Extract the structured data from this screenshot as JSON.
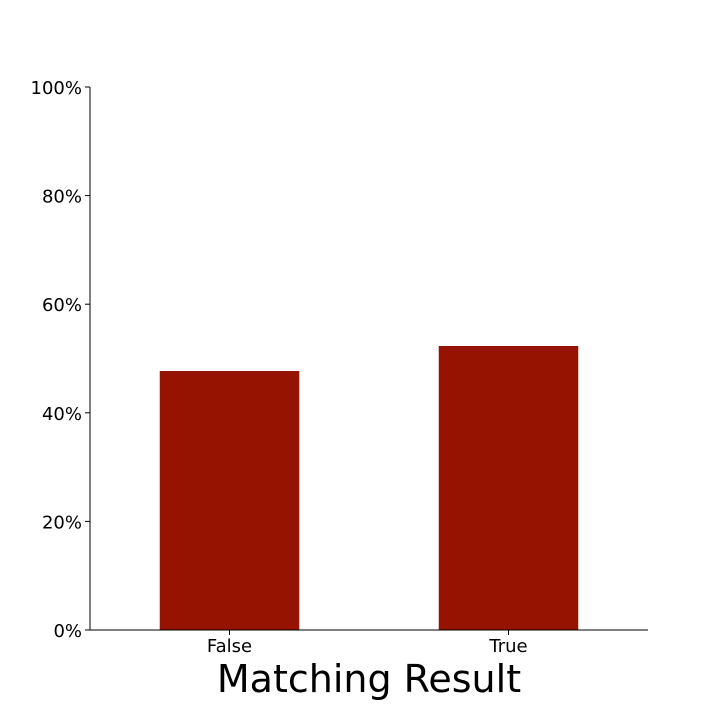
{
  "chart_data": {
    "type": "bar",
    "categories": [
      "False",
      "True"
    ],
    "values": [
      47.7,
      52.3
    ],
    "xlabel": "Matching Result",
    "ylabel": "",
    "ylim": [
      0,
      100
    ],
    "yticks": [
      0,
      20,
      40,
      60,
      80,
      100
    ],
    "ytick_labels": [
      "0%",
      "20%",
      "40%",
      "60%",
      "80%",
      "100%"
    ],
    "grid": false,
    "bar_color": "#951300"
  }
}
